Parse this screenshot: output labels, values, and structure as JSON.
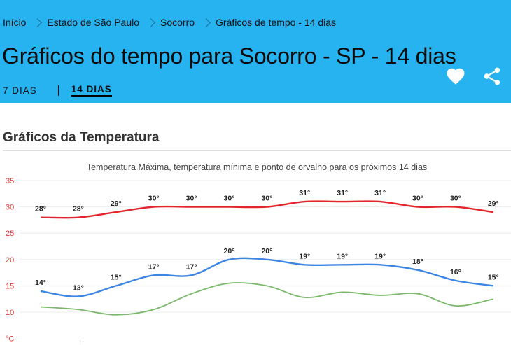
{
  "breadcrumb": [
    "Início",
    "Estado de São Paulo",
    "Socorro",
    "Gráficos de tempo - 14 dias"
  ],
  "page_title": "Gráficos do tempo para Socorro - SP - 14 dias",
  "tabs": {
    "seven_days": "7 DIAS",
    "fourteen_days": "14 DIAS"
  },
  "icons": {
    "favorite": "heart-icon",
    "share": "share-icon"
  },
  "section_title": "Gráficos da Temperatura",
  "colors": {
    "header_bg": "#27b3f0",
    "max": "#e3262b",
    "min": "#3e86e3",
    "dew": "#7ab86a",
    "axis_text": "#e53935"
  },
  "chart_data": {
    "type": "line",
    "title": "Temperatura Máxima, temperatura mínima e ponto de orvalho para os próximos 14 dias",
    "ylim": [
      5,
      35
    ],
    "yticks": [
      35,
      30,
      25,
      20,
      15,
      10,
      5
    ],
    "ytick_labels": [
      "35",
      "30",
      "25",
      "20",
      "15",
      "10",
      "°C"
    ],
    "x": [
      1,
      2,
      3,
      4,
      5,
      6,
      7,
      8,
      9,
      10,
      11,
      12,
      13
    ],
    "series": [
      {
        "key": "max",
        "values": [
          28,
          28,
          29,
          30,
          30,
          30,
          30,
          31,
          31,
          31,
          30,
          30,
          29
        ],
        "labels": [
          "28°",
          "28°",
          "29°",
          "30°",
          "30°",
          "30°",
          "30°",
          "31°",
          "31°",
          "31°",
          "30°",
          "30°",
          "29°"
        ]
      },
      {
        "key": "min",
        "values": [
          14,
          13,
          15,
          17,
          17,
          20,
          20,
          19,
          19,
          19,
          18,
          16,
          15
        ],
        "labels": [
          "14°",
          "13°",
          "15°",
          "17°",
          "17°",
          "20°",
          "20°",
          "19°",
          "19°",
          "19°",
          "18°",
          "16°",
          "15°"
        ]
      },
      {
        "key": "dew",
        "values": [
          11,
          10.5,
          9.5,
          10.5,
          13.5,
          15.5,
          15,
          12.8,
          13.8,
          13.2,
          13.5,
          11.2,
          12.5
        ],
        "labels": []
      }
    ]
  }
}
